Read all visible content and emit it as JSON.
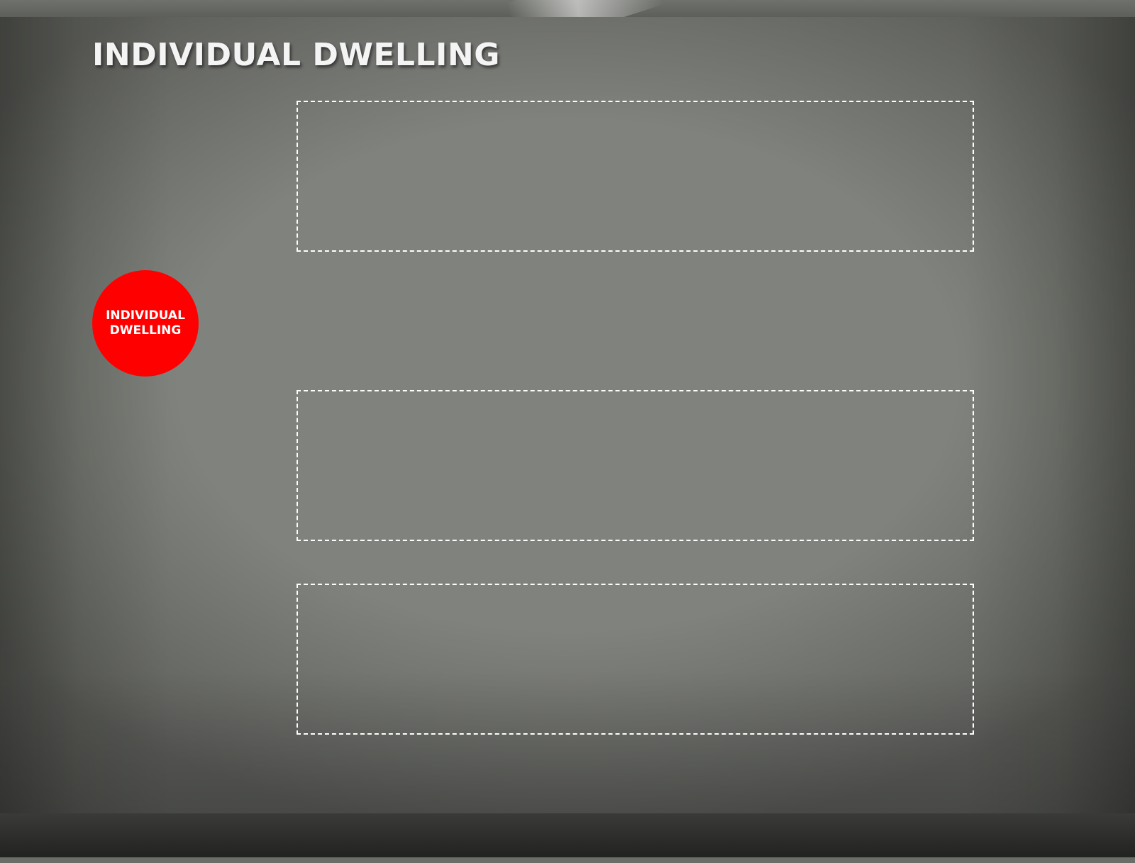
{
  "slide": {
    "title": "INDIVIDUAL DWELLING",
    "circle_label": "INDIVIDUAL DWELLING",
    "accent_color": "#ff0000",
    "placeholder_boxes": [
      {
        "text": ""
      },
      {
        "text": ""
      },
      {
        "text": ""
      }
    ]
  }
}
